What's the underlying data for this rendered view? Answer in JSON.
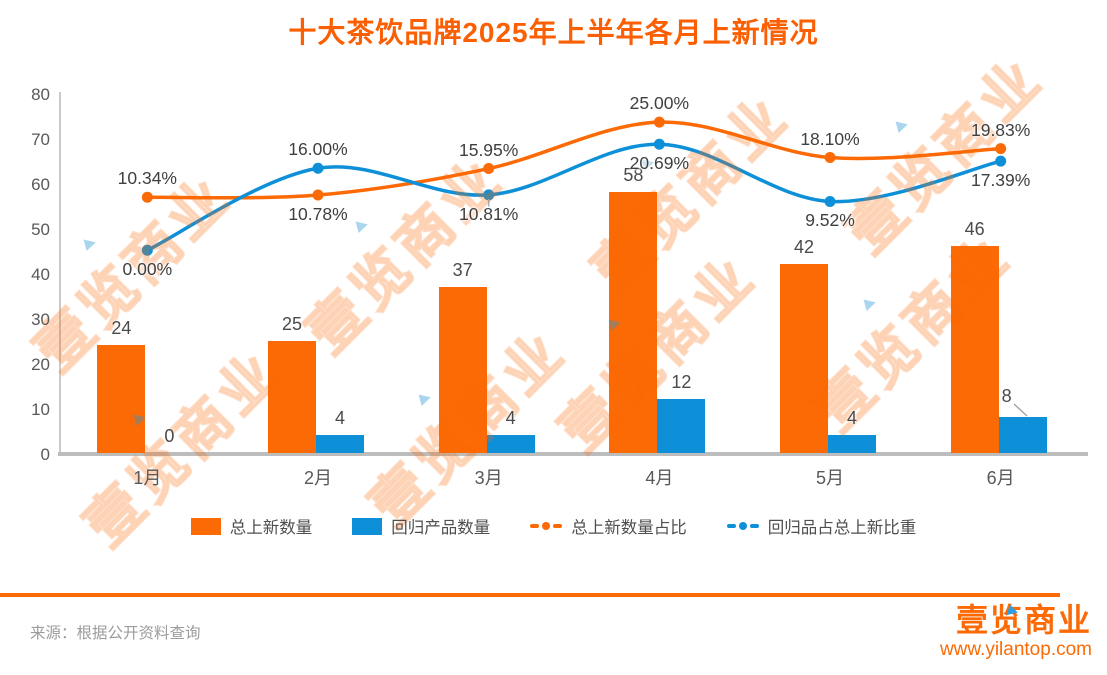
{
  "title": "十大茶饮品牌2025年上半年各月上新情况",
  "watermark": {
    "text": "壹览商业"
  },
  "footer": {
    "source": "来源：根据公开资料查询",
    "logo_name": "壹览商业",
    "logo_url": "www.yilantop.com"
  },
  "colors": {
    "orange": "#FB6A05",
    "blue": "#0E90D9",
    "title_orange": "#FB5F04",
    "axis_gray": "#BDBDBD",
    "label_gray": "#4a4a4a"
  },
  "chart_data": {
    "type": "combo-bar-line",
    "title": "十大茶饮品牌2025年上半年各月上新情况",
    "categories": [
      "1月",
      "2月",
      "3月",
      "4月",
      "5月",
      "6月"
    ],
    "y_axis": {
      "min": 0,
      "max": 80,
      "tick_step": 10,
      "ticks": [
        0,
        10,
        20,
        30,
        40,
        50,
        60,
        70,
        80
      ]
    },
    "series": [
      {
        "name": "总上新数量",
        "type": "bar",
        "color": "#FB6A05",
        "values": [
          24,
          25,
          37,
          58,
          42,
          46
        ]
      },
      {
        "name": "回归产品数量",
        "type": "bar",
        "color": "#0E90D9",
        "values": [
          0,
          4,
          4,
          12,
          4,
          8
        ]
      },
      {
        "name": "总上新数量占比",
        "type": "line",
        "color": "#FB6A05",
        "values_pct": [
          10.34,
          10.78,
          15.95,
          25.0,
          18.1,
          19.83
        ],
        "labels": [
          "10.34%",
          "10.78%",
          "15.95%",
          "25.00%",
          "18.10%",
          "19.83%"
        ]
      },
      {
        "name": "回归品占总上新比重",
        "type": "line",
        "color": "#0E90D9",
        "values_pct": [
          0.0,
          16.0,
          10.81,
          20.69,
          9.52,
          17.39
        ],
        "labels": [
          "0.00%",
          "16.00%",
          "10.81%",
          "20.69%",
          "9.52%",
          "17.39%"
        ]
      }
    ],
    "legend": [
      "总上新数量",
      "回归产品数量",
      "总上新数量占比",
      "回归品占总上新比重"
    ],
    "legend_position": "bottom",
    "grid": false
  }
}
